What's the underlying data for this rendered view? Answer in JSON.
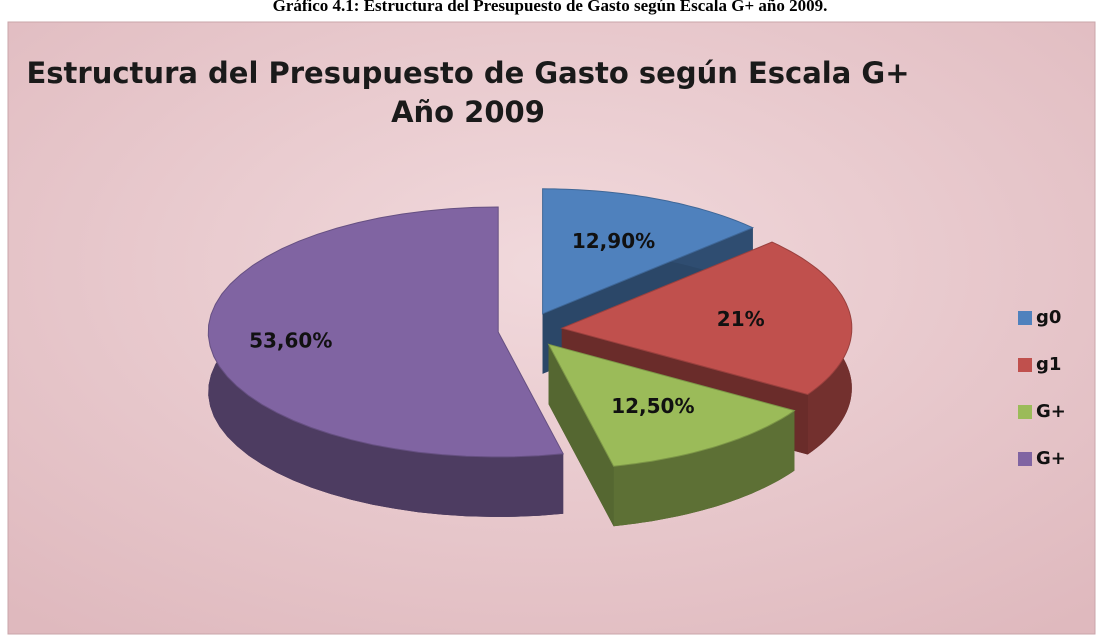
{
  "caption": "Gráfico 4.1: Estructura del Presupuesto de Gasto según Escala G+ año 2009.",
  "chart_data": {
    "type": "pie",
    "title": [
      "Estructura del Presupuesto de Gasto según Escala G+",
      "Año 2009"
    ],
    "categories": [
      "g0",
      "g1",
      "G+",
      "G+"
    ],
    "values": [
      12.9,
      21,
      12.5,
      53.6
    ],
    "value_labels": [
      "12,90%",
      "21%",
      "12,50%",
      "53,60%"
    ],
    "colors": [
      "#4f81bd",
      "#c0504d",
      "#9bbb59",
      "#8064a2"
    ],
    "legend": "right"
  }
}
